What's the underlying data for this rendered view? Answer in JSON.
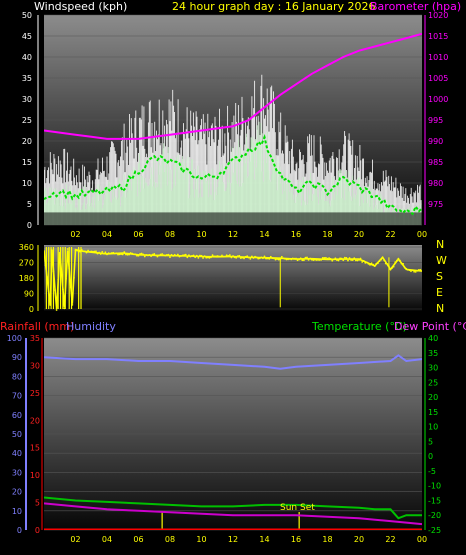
{
  "header": {
    "wind_label": "Windspeed (kph)",
    "title": "24 hour graph day : 16 January 2026",
    "baro_label": "Barometer (hpa)"
  },
  "lower_header": {
    "rain_label": "Rainfall (mm)",
    "humidity_label": "Humidity",
    "temp_label": "Temperature (°C)",
    "dew_label": "Dew Point (°C)"
  },
  "annotations": {
    "sunset": "Sun Set"
  },
  "compass": [
    "N",
    "W",
    "S",
    "E",
    "N"
  ],
  "colors": {
    "wind_gust": "#ffffff",
    "wind_avg": "#c8f0c8",
    "wind_avg_trend": "#00e000",
    "barometer": "#ff00ff",
    "wind_dir": "#ffff00",
    "rain": "#ff0000",
    "humidity": "#8080ff",
    "temperature": "#00c000",
    "dewpoint": "#cc00cc",
    "x_ticks": "#ffff00"
  },
  "chart_data": [
    {
      "type": "line",
      "name": "wind_and_pressure",
      "x_ticks": [
        "02",
        "04",
        "06",
        "08",
        "10",
        "12",
        "14",
        "16",
        "18",
        "20",
        "22",
        "00"
      ],
      "y_left": {
        "label": "Windspeed (kph)",
        "range": [
          0,
          50
        ],
        "ticks": [
          0,
          5,
          10,
          15,
          20,
          25,
          30,
          35,
          40,
          45,
          50
        ]
      },
      "y_right": {
        "label": "Barometer (hpa)",
        "range": [
          970,
          1020
        ],
        "ticks": [
          975,
          980,
          985,
          990,
          995,
          1000,
          1005,
          1010,
          1015,
          1020
        ]
      },
      "grid": true,
      "series": [
        {
          "name": "Barometer",
          "axis": "right",
          "x": [
            0,
            1,
            2,
            3,
            4,
            5,
            6,
            7,
            8,
            9,
            10,
            11,
            12,
            13,
            14,
            15,
            16,
            17,
            18,
            19,
            20,
            21,
            22,
            23,
            24
          ],
          "values": [
            992.5,
            992,
            991.5,
            991,
            990.5,
            990.5,
            990.5,
            991,
            991.5,
            992,
            992.5,
            993,
            993.5,
            995,
            998,
            1001,
            1003.5,
            1006,
            1008,
            1010,
            1011.5,
            1012.5,
            1013.5,
            1014.5,
            1015.5
          ]
        },
        {
          "name": "Wind avg",
          "axis": "left",
          "x": [
            0,
            1,
            2,
            3,
            4,
            5,
            6,
            7,
            8,
            9,
            10,
            11,
            12,
            13,
            14,
            15,
            16,
            17,
            18,
            19,
            20,
            21,
            22,
            23,
            24
          ],
          "values": [
            7,
            8,
            7,
            7.5,
            8,
            9,
            13,
            16,
            15,
            13,
            11,
            12,
            15,
            18,
            20,
            12,
            8,
            10,
            8,
            11,
            9,
            7,
            4,
            3,
            4
          ]
        },
        {
          "name": "Wind gust",
          "axis": "left",
          "x": [
            0,
            1,
            2,
            3,
            4,
            5,
            6,
            7,
            8,
            9,
            10,
            11,
            12,
            13,
            14,
            15,
            16,
            17,
            18,
            19,
            20,
            21,
            22,
            23,
            24
          ],
          "values": [
            16,
            18,
            14,
            13,
            17,
            22,
            27,
            30,
            31,
            27,
            24,
            25,
            27,
            31,
            36,
            25,
            17,
            21,
            18,
            21,
            18,
            14,
            12,
            9,
            10
          ]
        }
      ]
    },
    {
      "type": "line",
      "name": "wind_direction",
      "x_ticks": [
        "02",
        "04",
        "06",
        "08",
        "10",
        "12",
        "14",
        "16",
        "18",
        "20",
        "22",
        "00"
      ],
      "y_left": {
        "range": [
          0,
          360
        ],
        "ticks": [
          0,
          90,
          180,
          270,
          360
        ]
      },
      "series": [
        {
          "name": "Wind direction",
          "x": [
            0,
            0.4,
            0.5,
            0.8,
            1,
            1.3,
            1.5,
            1.8,
            2,
            2.5,
            3,
            4,
            5,
            6,
            7,
            8,
            9,
            10,
            11,
            12,
            13,
            14,
            15,
            16,
            17,
            18,
            19,
            20,
            21,
            21.5,
            22,
            22.5,
            23,
            24
          ],
          "values": [
            340,
            20,
            340,
            0,
            330,
            10,
            340,
            30,
            345,
            335,
            330,
            320,
            325,
            315,
            312,
            310,
            308,
            305,
            303,
            305,
            300,
            298,
            295,
            290,
            292,
            288,
            290,
            290,
            250,
            300,
            230,
            290,
            230,
            220
          ]
        }
      ]
    },
    {
      "type": "line",
      "name": "temperature_humidity_rain",
      "x_ticks": [
        "02",
        "04",
        "06",
        "08",
        "10",
        "12",
        "14",
        "16",
        "18",
        "20",
        "22",
        "00"
      ],
      "y_left_rain": {
        "label": "Rainfall (mm)",
        "range": [
          0,
          35
        ],
        "ticks": [
          0,
          5,
          10,
          15,
          20,
          25,
          30,
          35
        ]
      },
      "y_left_humidity": {
        "label": "Humidity",
        "range": [
          0,
          100
        ],
        "ticks": [
          0,
          10,
          20,
          30,
          40,
          50,
          60,
          70,
          80,
          90,
          100
        ]
      },
      "y_right": {
        "label": "Temperature (°C)",
        "range": [
          -25,
          40
        ],
        "ticks": [
          -25,
          -20,
          -15,
          -10,
          -5,
          0,
          5,
          10,
          15,
          20,
          25,
          30,
          35,
          40
        ]
      },
      "grid": true,
      "series": [
        {
          "name": "Humidity",
          "axis": "humidity",
          "x": [
            0,
            2,
            4,
            6,
            8,
            10,
            12,
            14,
            15,
            16,
            18,
            20,
            22,
            22.5,
            23,
            24
          ],
          "values": [
            90,
            89,
            89,
            88,
            88,
            87,
            86,
            85,
            84,
            85,
            86,
            87,
            88,
            91,
            88,
            89
          ]
        },
        {
          "name": "Temperature",
          "axis": "temp",
          "x": [
            0,
            2,
            4,
            6,
            8,
            10,
            12,
            14,
            16,
            18,
            20,
            21,
            22,
            22.5,
            23,
            24
          ],
          "values": [
            -14,
            -15,
            -15.5,
            -16,
            -16.5,
            -17,
            -17,
            -16.5,
            -16.5,
            -17,
            -17.5,
            -18,
            -18,
            -21,
            -20,
            -20
          ]
        },
        {
          "name": "Dew point",
          "axis": "temp",
          "x": [
            0,
            2,
            4,
            6,
            8,
            10,
            12,
            14,
            16,
            18,
            20,
            22,
            23,
            24
          ],
          "values": [
            -16,
            -17,
            -18,
            -18.5,
            -19,
            -19.5,
            -20,
            -20,
            -20,
            -20.5,
            -21,
            -22,
            -22.5,
            -23
          ]
        },
        {
          "name": "Rainfall",
          "axis": "rain",
          "x": [
            0,
            24
          ],
          "values": [
            0,
            0
          ]
        }
      ]
    }
  ]
}
